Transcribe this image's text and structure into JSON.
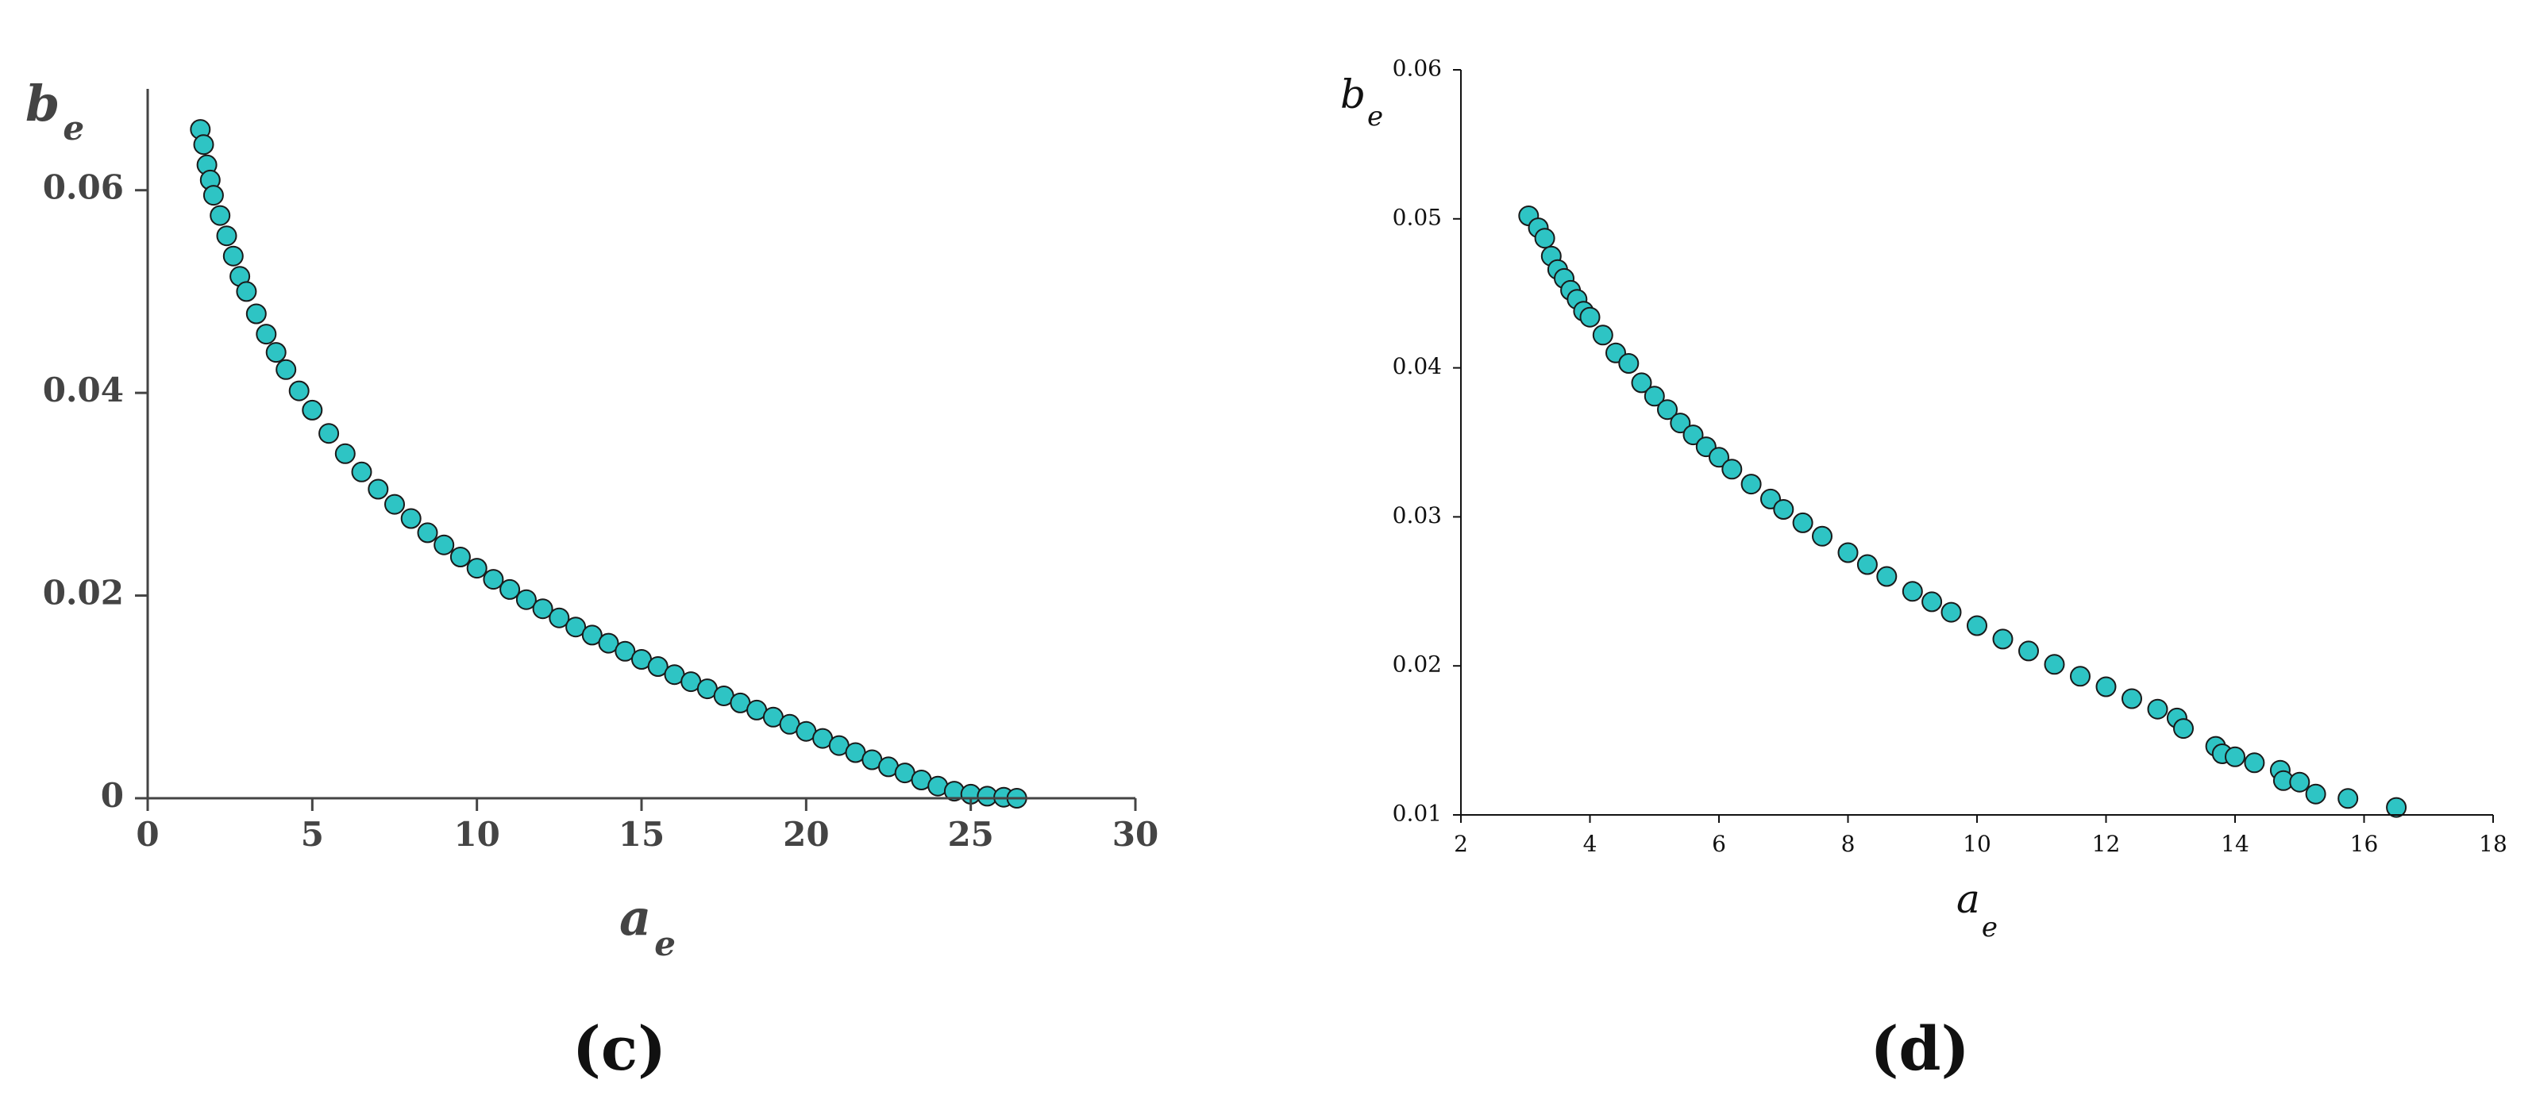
{
  "chart_data": [
    {
      "type": "scatter",
      "panel_label": "(c)",
      "xlabel": "a",
      "xlabel_sub": "e",
      "ylabel": "b",
      "ylabel_sub": "e",
      "xlim": [
        0,
        30
      ],
      "ylim": [
        0,
        0.07
      ],
      "xticks": [
        0,
        5,
        10,
        15,
        20,
        25,
        30
      ],
      "xtick_labels": [
        "0",
        "5",
        "10",
        "15",
        "20",
        "25",
        "30"
      ],
      "yticks": [
        0,
        0.02,
        0.04,
        0.06
      ],
      "ytick_labels": [
        "0",
        "0.02",
        "0.04",
        "0.06"
      ],
      "grid": false,
      "marker_color": "#2ec4c4",
      "marker_edge": "#1a1a1a",
      "series": [
        {
          "points": [
            [
              1.6,
              0.066
            ],
            [
              1.7,
              0.0645
            ],
            [
              1.8,
              0.0625
            ],
            [
              1.9,
              0.061
            ],
            [
              2.0,
              0.0595
            ],
            [
              2.2,
              0.0575
            ],
            [
              2.4,
              0.0555
            ],
            [
              2.6,
              0.0535
            ],
            [
              2.8,
              0.0515
            ],
            [
              3.0,
              0.05
            ],
            [
              3.3,
              0.0478
            ],
            [
              3.6,
              0.0458
            ],
            [
              3.9,
              0.044
            ],
            [
              4.2,
              0.0423
            ],
            [
              4.6,
              0.0402
            ],
            [
              5.0,
              0.0383
            ],
            [
              5.5,
              0.036
            ],
            [
              6.0,
              0.034
            ],
            [
              6.5,
              0.0322
            ],
            [
              7.0,
              0.0305
            ],
            [
              7.5,
              0.029
            ],
            [
              8.0,
              0.0276
            ],
            [
              8.5,
              0.0262
            ],
            [
              9.0,
              0.025
            ],
            [
              9.5,
              0.0238
            ],
            [
              10.0,
              0.0227
            ],
            [
              10.5,
              0.0216
            ],
            [
              11.0,
              0.0206
            ],
            [
              11.5,
              0.0196
            ],
            [
              12.0,
              0.0187
            ],
            [
              12.5,
              0.0178
            ],
            [
              13.0,
              0.0169
            ],
            [
              13.5,
              0.0161
            ],
            [
              14.0,
              0.0153
            ],
            [
              14.5,
              0.0145
            ],
            [
              15.0,
              0.0137
            ],
            [
              15.5,
              0.013
            ],
            [
              16.0,
              0.0122
            ],
            [
              16.5,
              0.0115
            ],
            [
              17.0,
              0.0108
            ],
            [
              17.5,
              0.0101
            ],
            [
              18.0,
              0.0094
            ],
            [
              18.5,
              0.0087
            ],
            [
              19.0,
              0.008
            ],
            [
              19.5,
              0.0073
            ],
            [
              20.0,
              0.0066
            ],
            [
              20.5,
              0.0059
            ],
            [
              21.0,
              0.0052
            ],
            [
              21.5,
              0.0045
            ],
            [
              22.0,
              0.0038
            ],
            [
              22.5,
              0.0031
            ],
            [
              23.0,
              0.0025
            ],
            [
              23.5,
              0.0018
            ],
            [
              24.0,
              0.0012
            ],
            [
              24.5,
              0.0007
            ],
            [
              25.0,
              0.0004
            ],
            [
              25.5,
              0.0002
            ],
            [
              26.0,
              0.0001
            ],
            [
              26.4,
              0.0
            ]
          ]
        }
      ]
    },
    {
      "type": "scatter",
      "panel_label": "(d)",
      "xlabel": "a",
      "xlabel_sub": "e",
      "ylabel": "b",
      "ylabel_sub": "e",
      "xlim": [
        2,
        18
      ],
      "ylim": [
        0.01,
        0.06
      ],
      "xticks": [
        2,
        4,
        6,
        8,
        10,
        12,
        14,
        16,
        18
      ],
      "xtick_labels": [
        "2",
        "4",
        "6",
        "8",
        "10",
        "12",
        "14",
        "16",
        "18"
      ],
      "yticks": [
        0.01,
        0.02,
        0.03,
        0.04,
        0.05,
        0.06
      ],
      "ytick_labels": [
        "0.01",
        "0.02",
        "0.03",
        "0.04",
        "0.05",
        "0.06"
      ],
      "grid": false,
      "marker_color": "#2ec4c4",
      "marker_edge": "#1a1a1a",
      "series": [
        {
          "points": [
            [
              3.05,
              0.0502
            ],
            [
              3.2,
              0.0494
            ],
            [
              3.3,
              0.0487
            ],
            [
              3.4,
              0.0475
            ],
            [
              3.5,
              0.0466
            ],
            [
              3.6,
              0.046
            ],
            [
              3.7,
              0.0452
            ],
            [
              3.8,
              0.0446
            ],
            [
              3.9,
              0.0438
            ],
            [
              4.0,
              0.0434
            ],
            [
              4.2,
              0.0422
            ],
            [
              4.4,
              0.041
            ],
            [
              4.6,
              0.0403
            ],
            [
              4.8,
              0.039
            ],
            [
              5.0,
              0.0381
            ],
            [
              5.2,
              0.0372
            ],
            [
              5.4,
              0.0363
            ],
            [
              5.6,
              0.0355
            ],
            [
              5.8,
              0.0347
            ],
            [
              6.0,
              0.034
            ],
            [
              6.2,
              0.0332
            ],
            [
              6.5,
              0.0322
            ],
            [
              6.8,
              0.0312
            ],
            [
              7.0,
              0.0305
            ],
            [
              7.3,
              0.0296
            ],
            [
              7.6,
              0.0287
            ],
            [
              8.0,
              0.0276
            ],
            [
              8.3,
              0.0268
            ],
            [
              8.6,
              0.026
            ],
            [
              9.0,
              0.025
            ],
            [
              9.3,
              0.0243
            ],
            [
              9.6,
              0.0236
            ],
            [
              10.0,
              0.0227
            ],
            [
              10.4,
              0.0218
            ],
            [
              10.8,
              0.021
            ],
            [
              11.2,
              0.0201
            ],
            [
              11.6,
              0.0193
            ],
            [
              12.0,
              0.0186
            ],
            [
              12.4,
              0.0178
            ],
            [
              12.8,
              0.0171
            ],
            [
              13.1,
              0.0165
            ],
            [
              13.2,
              0.0158
            ],
            [
              13.7,
              0.0146
            ],
            [
              13.8,
              0.0141
            ],
            [
              14.0,
              0.0139
            ],
            [
              14.3,
              0.0135
            ],
            [
              14.7,
              0.013
            ],
            [
              14.75,
              0.0123
            ],
            [
              15.0,
              0.0122
            ],
            [
              15.25,
              0.0114
            ],
            [
              15.75,
              0.0111
            ],
            [
              16.5,
              0.0105
            ]
          ]
        }
      ]
    }
  ]
}
